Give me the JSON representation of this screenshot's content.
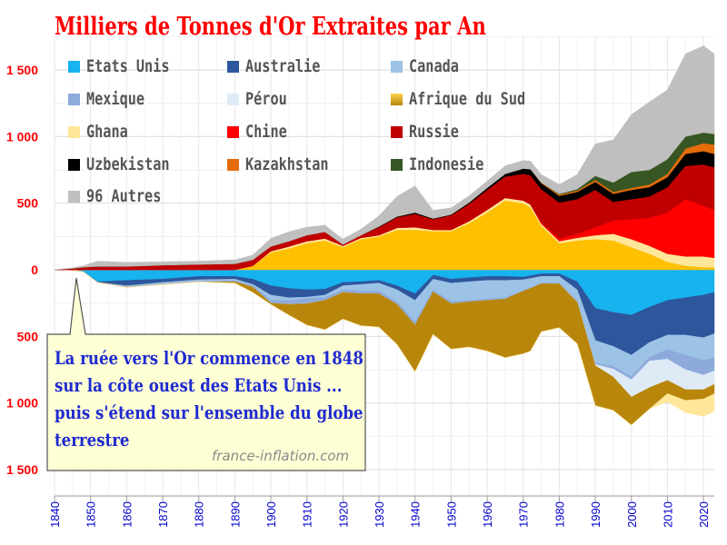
{
  "chart_data": {
    "type": "area",
    "title": "Milliers de Tonnes d'Or Extraites par An",
    "x_ticks": [
      1840,
      1850,
      1860,
      1870,
      1880,
      1890,
      1900,
      1910,
      1920,
      1930,
      1940,
      1950,
      1960,
      1970,
      1980,
      1990,
      2000,
      2010,
      2020
    ],
    "y_tick_labels": [
      "1 500",
      "1 000",
      "500",
      "0",
      "500",
      "1 000",
      "1 500"
    ],
    "y_tick_values": [
      1500,
      1000,
      500,
      0,
      -500,
      -1000,
      -1500
    ],
    "ylim": [
      -1700,
      1750
    ],
    "grid": true,
    "legend_position": "top-left",
    "x": [
      1840,
      1845,
      1848,
      1852,
      1860,
      1870,
      1880,
      1890,
      1895,
      1900,
      1905,
      1910,
      1915,
      1920,
      1925,
      1930,
      1935,
      1940,
      1945,
      1950,
      1955,
      1960,
      1965,
      1970,
      1972,
      1975,
      1980,
      1985,
      1990,
      1995,
      2000,
      2005,
      2010,
      2015,
      2020,
      2023
    ],
    "baseline_note": "Etats Unis stacked downward from 0; Afrique du Sud straddles 0 (upper portion values shown in series_above).",
    "series_below": [
      {
        "name": "Etats Unis",
        "color": "#16b3ef",
        "values": [
          0,
          2,
          15,
          90,
          80,
          70,
          50,
          50,
          70,
          120,
          140,
          150,
          145,
          95,
          90,
          80,
          120,
          180,
          40,
          70,
          60,
          50,
          50,
          55,
          45,
          30,
          30,
          90,
          290,
          320,
          340,
          280,
          230,
          210,
          190,
          170
        ]
      },
      {
        "name": "Australie",
        "color": "#2e569c",
        "values": [
          0,
          0,
          0,
          5,
          40,
          25,
          25,
          20,
          40,
          70,
          70,
          55,
          45,
          25,
          20,
          20,
          30,
          50,
          30,
          30,
          30,
          30,
          30,
          20,
          20,
          20,
          20,
          60,
          240,
          255,
          300,
          265,
          260,
          280,
          320,
          310
        ]
      },
      {
        "name": "Canada",
        "color": "#9cc3e6",
        "values": [
          0,
          0,
          0,
          0,
          5,
          10,
          10,
          10,
          10,
          40,
          20,
          10,
          20,
          30,
          50,
          60,
          90,
          160,
          80,
          140,
          140,
          140,
          130,
          80,
          70,
          50,
          50,
          80,
          170,
          150,
          160,
          110,
          110,
          150,
          170,
          180
        ]
      },
      {
        "name": "Mexique",
        "color": "#8eaadb",
        "values": [
          0,
          0,
          0,
          0,
          5,
          5,
          5,
          10,
          10,
          20,
          30,
          40,
          20,
          20,
          20,
          20,
          20,
          25,
          15,
          15,
          10,
          10,
          10,
          5,
          5,
          5,
          5,
          10,
          10,
          20,
          25,
          30,
          70,
          110,
          110,
          100
        ]
      },
      {
        "name": "Pérou",
        "color": "#deebf7",
        "values": [
          0,
          0,
          0,
          0,
          0,
          0,
          0,
          0,
          0,
          0,
          0,
          0,
          0,
          0,
          0,
          0,
          0,
          0,
          0,
          0,
          0,
          0,
          0,
          0,
          0,
          0,
          0,
          5,
          10,
          60,
          130,
          200,
          160,
          150,
          110,
          100
        ]
      },
      {
        "name": "Afrique du Sud",
        "color": "#b8860b",
        "values": [
          0,
          0,
          0,
          0,
          0,
          0,
          0,
          10,
          40,
          10,
          80,
          160,
          220,
          200,
          240,
          250,
          300,
          350,
          320,
          340,
          340,
          380,
          440,
          470,
          470,
          360,
          330,
          310,
          300,
          250,
          210,
          160,
          100,
          80,
          70,
          70
        ]
      },
      {
        "name": "Ghana",
        "color": "#ffe699",
        "values": [
          0,
          0,
          0,
          0,
          0,
          0,
          0,
          0,
          0,
          0,
          0,
          0,
          0,
          0,
          0,
          0,
          0,
          0,
          0,
          0,
          0,
          0,
          0,
          0,
          0,
          0,
          0,
          0,
          0,
          0,
          0,
          0,
          60,
          90,
          130,
          130
        ]
      }
    ],
    "series_above": [
      {
        "name": "Afrique du Sud",
        "color": "#ffc000",
        "values": [
          0,
          0,
          0,
          0,
          0,
          0,
          0,
          0,
          30,
          130,
          160,
          200,
          220,
          170,
          230,
          250,
          300,
          300,
          290,
          290,
          350,
          430,
          520,
          500,
          470,
          330,
          200,
          220,
          230,
          220,
          170,
          120,
          60,
          30,
          20,
          20
        ]
      },
      {
        "name": "Ghana",
        "color": "#ffe699",
        "values": [
          0,
          0,
          0,
          0,
          0,
          0,
          0,
          0,
          0,
          10,
          15,
          15,
          15,
          10,
          10,
          10,
          15,
          20,
          10,
          10,
          15,
          20,
          20,
          20,
          20,
          15,
          15,
          20,
          30,
          50,
          60,
          60,
          60,
          70,
          80,
          70
        ]
      },
      {
        "name": "Chine",
        "color": "#ff0000",
        "values": [
          0,
          0,
          0,
          0,
          0,
          0,
          0,
          0,
          0,
          0,
          0,
          0,
          0,
          0,
          0,
          0,
          0,
          0,
          0,
          0,
          0,
          0,
          0,
          0,
          0,
          10,
          20,
          30,
          60,
          100,
          150,
          210,
          310,
          430,
          380,
          360
        ]
      },
      {
        "name": "Russie",
        "color": "#c00000",
        "values": [
          0,
          10,
          20,
          25,
          25,
          35,
          40,
          45,
          45,
          35,
          40,
          45,
          50,
          10,
          20,
          60,
          80,
          100,
          80,
          110,
          130,
          150,
          160,
          200,
          220,
          250,
          270,
          260,
          280,
          140,
          150,
          160,
          190,
          250,
          310,
          320
        ]
      },
      {
        "name": "Uzbekistan",
        "color": "#000000",
        "values": [
          0,
          0,
          0,
          0,
          0,
          0,
          0,
          0,
          0,
          0,
          0,
          0,
          0,
          0,
          0,
          5,
          5,
          10,
          5,
          5,
          10,
          15,
          20,
          40,
          45,
          45,
          50,
          55,
          60,
          60,
          70,
          70,
          75,
          90,
          100,
          100
        ]
      },
      {
        "name": "Kazakhstan",
        "color": "#e46c0a",
        "values": [
          0,
          0,
          0,
          0,
          0,
          0,
          0,
          0,
          0,
          0,
          0,
          0,
          0,
          0,
          0,
          0,
          0,
          0,
          0,
          0,
          0,
          0,
          0,
          0,
          0,
          5,
          10,
          10,
          15,
          15,
          15,
          20,
          25,
          40,
          60,
          70
        ]
      },
      {
        "name": "Indonesie",
        "color": "#375623",
        "values": [
          0,
          0,
          0,
          0,
          0,
          0,
          0,
          0,
          0,
          0,
          0,
          0,
          0,
          0,
          0,
          0,
          0,
          0,
          0,
          0,
          0,
          0,
          0,
          0,
          0,
          0,
          5,
          10,
          30,
          70,
          120,
          110,
          110,
          90,
          80,
          80
        ]
      },
      {
        "name": "96 Autres",
        "color": "#bfbfbf",
        "values": [
          0,
          5,
          10,
          40,
          30,
          25,
          25,
          30,
          35,
          60,
          70,
          60,
          50,
          40,
          45,
          80,
          150,
          200,
          60,
          50,
          50,
          50,
          60,
          60,
          60,
          60,
          70,
          110,
          240,
          320,
          430,
          510,
          520,
          620,
          650,
          600
        ]
      }
    ],
    "legend": [
      "Etats Unis",
      "Australie",
      "Canada",
      "Mexique",
      "Pérou",
      "Afrique du Sud",
      "Ghana",
      "Chine",
      "Russie",
      "Uzbekistan",
      "Kazakhstan",
      "Indonesie",
      "96 Autres"
    ],
    "annotation": {
      "lines": [
        "La ruée vers l'Or commence en 1848",
        "sur la côte ouest des Etats Unis ...",
        "puis s'étend sur l'ensemble du globe",
        "terrestre"
      ],
      "points_to_year": 1848
    },
    "source": "france-inflation.com"
  },
  "colors": {
    "title": "#ff0000",
    "axis_labels": "#0000cc",
    "y_labels": "#ff0000",
    "callout_bg": "#ffffd5",
    "callout_text": "#1f2ad0"
  }
}
